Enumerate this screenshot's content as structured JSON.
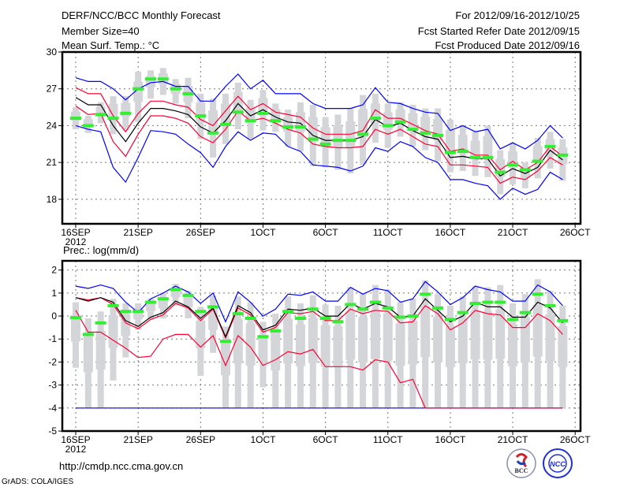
{
  "header": {
    "title": "DERF/NCC/BCC Monthly Forecast",
    "member_size": "Member Size=40",
    "variable_top": "Mean Surf. Temp.: °C",
    "period": "For 2012/09/16-2012/10/25",
    "start_date": "Fcst Started Refer Date 2012/09/15",
    "produced_date": "Fcst Produced Date 2012/09/16"
  },
  "footer": {
    "url": "http://cmdp.ncc.cma.gov.cn",
    "credit": "GrADS: COLA/IGES",
    "logo_bcc": "BCC",
    "logo_ncc": "NCC"
  },
  "colors": {
    "ensemble_bound": "#0000ff",
    "spread": "#ff0033",
    "mean": "#000000",
    "observed": "#33ee33",
    "box": "#d4d5d9",
    "grid": "#777777"
  },
  "chart_data": [
    {
      "type": "line",
      "title": "Mean Surf. Temp.: °C",
      "xlabel": "",
      "ylabel": "",
      "x_ticks": [
        "16SEP",
        "21SEP",
        "26SEP",
        "1OCT",
        "6OCT",
        "11OCT",
        "16OCT",
        "21OCT",
        "26OCT"
      ],
      "x_year": "2012",
      "y_ticks": [
        18,
        21,
        24,
        27,
        30
      ],
      "ylim": [
        16,
        30
      ],
      "xlim_days": [
        -1,
        40.5
      ],
      "grid": true,
      "series": [
        {
          "name": "box_max",
          "values": [
            25.5,
            24.8,
            25.9,
            26.4,
            26.4,
            28.4,
            28.5,
            28.7,
            27.8,
            27.9,
            26.6,
            26.2,
            26.6,
            27.5,
            26.1,
            26.9,
            25.8,
            25.3,
            25.9,
            25.7,
            24.7,
            24.9,
            25.4,
            26.5,
            26.6,
            25.8,
            25.9,
            25.7,
            25.4,
            25.4,
            24.5,
            24.0,
            23.5,
            24.0,
            22.0,
            22.6,
            21.0,
            23.0,
            23.5,
            22.9
          ]
        },
        {
          "name": "box_min",
          "values": [
            23.7,
            23.4,
            24.2,
            23.3,
            23.6,
            24.3,
            26.2,
            26.5,
            25.8,
            24.6,
            22.9,
            21.4,
            22.5,
            23.7,
            22.9,
            23.6,
            23.5,
            22.3,
            21.9,
            20.7,
            20.6,
            20.4,
            20.1,
            20.8,
            22.6,
            22.2,
            23.1,
            22.3,
            22.0,
            21.1,
            20.2,
            20.3,
            19.9,
            19.8,
            18.4,
            19.2,
            18.9,
            19.7,
            20.5,
            19.5
          ]
        },
        {
          "name": "upper_bound",
          "values": [
            27.9,
            27.6,
            27.6,
            27.0,
            26.1,
            27.0,
            27.5,
            27.6,
            27.2,
            27.2,
            26.0,
            26.0,
            27.2,
            28.2,
            27.0,
            27.7,
            26.6,
            26.6,
            26.6,
            25.8,
            25.4,
            25.4,
            25.4,
            25.7,
            27.1,
            25.9,
            25.8,
            25.4,
            25.1,
            25.0,
            23.6,
            24.0,
            23.5,
            23.7,
            22.1,
            22.6,
            22.1,
            22.8,
            24.0,
            23.0
          ]
        },
        {
          "name": "lower_bound",
          "values": [
            24.0,
            23.7,
            23.5,
            20.6,
            19.4,
            21.4,
            23.6,
            23.5,
            23.3,
            22.5,
            21.8,
            20.6,
            22.3,
            23.5,
            22.8,
            23.4,
            23.3,
            22.3,
            21.9,
            20.8,
            20.7,
            20.6,
            20.3,
            20.7,
            22.2,
            21.9,
            22.7,
            22.3,
            21.4,
            21.0,
            19.6,
            19.6,
            19.3,
            19.1,
            18.0,
            18.9,
            18.4,
            18.8,
            20.2,
            19.6
          ]
        },
        {
          "name": "upper_spread",
          "values": [
            27.1,
            26.6,
            26.6,
            24.8,
            23.5,
            25.0,
            26.0,
            26.0,
            25.7,
            25.5,
            24.5,
            24.0,
            25.2,
            26.4,
            25.3,
            25.8,
            25.1,
            24.9,
            24.7,
            23.8,
            23.3,
            23.3,
            23.3,
            23.6,
            25.3,
            24.6,
            24.6,
            24.1,
            23.6,
            23.3,
            21.9,
            22.1,
            21.6,
            21.6,
            20.4,
            21.1,
            20.4,
            21.0,
            22.3,
            21.5
          ]
        },
        {
          "name": "lower_spread",
          "values": [
            25.6,
            24.9,
            25.0,
            22.7,
            21.5,
            23.3,
            24.8,
            24.8,
            24.6,
            24.2,
            23.1,
            22.6,
            23.7,
            25.2,
            24.4,
            24.6,
            24.2,
            23.7,
            23.4,
            22.5,
            22.3,
            22.2,
            22.2,
            22.3,
            23.7,
            23.3,
            23.7,
            23.1,
            22.5,
            22.3,
            20.8,
            20.8,
            20.7,
            20.6,
            19.3,
            19.8,
            19.6,
            20.3,
            21.4,
            20.8
          ]
        },
        {
          "name": "ensemble_mean",
          "values": [
            26.3,
            25.7,
            25.7,
            24.0,
            22.7,
            24.2,
            25.4,
            25.4,
            25.2,
            24.9,
            23.9,
            23.4,
            24.4,
            25.8,
            24.8,
            25.3,
            24.7,
            24.3,
            24.2,
            23.2,
            22.8,
            22.8,
            22.8,
            23.1,
            24.5,
            23.9,
            24.2,
            23.6,
            23.1,
            22.9,
            21.4,
            21.5,
            21.3,
            21.3,
            19.9,
            20.5,
            20.1,
            20.6,
            22.0,
            21.2
          ]
        },
        {
          "name": "observed_marker",
          "values": [
            24.6,
            24.0,
            24.9,
            24.6,
            25.0,
            27.0,
            27.8,
            27.8,
            27.0,
            26.6,
            24.8,
            23.4,
            24.1,
            25.1,
            24.4,
            25.0,
            24.4,
            23.9,
            23.9,
            22.9,
            22.5,
            22.8,
            22.8,
            23.3,
            24.6,
            24.0,
            24.3,
            23.7,
            23.4,
            23.2,
            21.8,
            21.9,
            21.4,
            21.4,
            20.2,
            20.8,
            20.4,
            21.1,
            22.3,
            21.6
          ]
        }
      ]
    },
    {
      "type": "line",
      "title": "Prec.: log(mm/d)",
      "xlabel": "",
      "ylabel": "",
      "x_ticks": [
        "16SEP",
        "21SEP",
        "26SEP",
        "1OCT",
        "6OCT",
        "11OCT",
        "16OCT",
        "21OCT",
        "26OCT"
      ],
      "x_year": "2012",
      "y_ticks": [
        -5,
        -4,
        -3,
        -2,
        -1,
        0,
        1,
        2
      ],
      "ylim": [
        -5,
        2.4
      ],
      "xlim_days": [
        -1,
        40.5
      ],
      "grid": true,
      "series": [
        {
          "name": "box_max",
          "values": [
            0.6,
            -0.1,
            0.2,
            0.75,
            0.55,
            0.55,
            0.75,
            1.0,
            1.4,
            1.1,
            0.4,
            0.9,
            -0.45,
            0.85,
            0.6,
            -0.25,
            0.1,
            0.85,
            0.55,
            0.9,
            0.5,
            0.45,
            1.25,
            0.95,
            1.35,
            1.15,
            0.6,
            0.75,
            1.55,
            0.95,
            0.45,
            0.85,
            1.3,
            1.25,
            1.35,
            0.55,
            0.95,
            1.6,
            1.1,
            0.45
          ]
        },
        {
          "name": "box_min",
          "values": [
            -2.25,
            -4,
            -4,
            -2.8,
            -1.8,
            -0.6,
            -0.15,
            -0.1,
            0.45,
            -0.1,
            -2.6,
            -1.6,
            -4,
            -4,
            -4,
            -3.1,
            -4,
            -4,
            -4,
            -4,
            -4,
            -4,
            -4,
            -4,
            -4,
            -4,
            -4,
            -4,
            -4,
            -4,
            -4,
            -4,
            -4,
            -4,
            -4,
            -4,
            -4,
            -4,
            -4,
            -4
          ]
        },
        {
          "name": "upper_bound",
          "values": [
            1.3,
            1.2,
            1.35,
            1.2,
            0.6,
            0.15,
            0.75,
            1.0,
            1.3,
            1.05,
            0.55,
            1.0,
            -0.25,
            1.05,
            0.6,
            0.0,
            0.3,
            0.95,
            0.9,
            1.05,
            0.65,
            0.65,
            1.25,
            0.95,
            1.2,
            1.1,
            0.6,
            0.75,
            1.5,
            1.05,
            0.5,
            0.8,
            1.3,
            1.15,
            1.05,
            0.65,
            0.65,
            1.35,
            1.05,
            0.45
          ]
        },
        {
          "name": "lower_bound",
          "values": [
            -4,
            -4,
            -4,
            -4,
            -4,
            -4,
            -4,
            -4,
            -4,
            -4,
            -4,
            -4,
            -4,
            -4,
            -4,
            -4,
            -4,
            -4,
            -4,
            -4,
            -4,
            -4,
            -4,
            -4,
            -4,
            -4,
            -4,
            -4,
            -4,
            -4,
            -4,
            -4,
            -4,
            -4,
            -4,
            -4,
            -4,
            -4,
            -4,
            -4
          ]
        },
        {
          "name": "upper_spread",
          "values": [
            0.8,
            0.7,
            0.8,
            0.5,
            -0.3,
            -0.55,
            -0.15,
            0.05,
            0.55,
            0.35,
            -0.2,
            0.3,
            -0.95,
            0.35,
            0.05,
            -0.7,
            -0.5,
            0.15,
            0.1,
            0.2,
            -0.2,
            -0.2,
            0.3,
            0.1,
            0.25,
            0.2,
            -0.3,
            -0.25,
            0.45,
            0.1,
            -0.6,
            -0.3,
            0.25,
            0.1,
            0.05,
            -0.5,
            -0.5,
            0.1,
            -0.2,
            -0.8
          ]
        },
        {
          "name": "lower_spread",
          "values": [
            0.25,
            -0.7,
            -0.7,
            -1.05,
            -1.4,
            -1.8,
            -1.75,
            -1.0,
            -0.8,
            -0.8,
            -1.35,
            -0.85,
            -2.15,
            -0.85,
            -1.35,
            -2.15,
            -1.9,
            -1.55,
            -1.65,
            -1.45,
            -2.2,
            -2.2,
            -2.2,
            -2.35,
            -1.9,
            -2.0,
            -2.9,
            -2.75,
            -4,
            -4,
            -4,
            -4,
            -4,
            -4,
            -4,
            -4,
            -4,
            -4,
            -4,
            -4
          ]
        },
        {
          "name": "ensemble_mean",
          "values": [
            0.8,
            0.65,
            0.8,
            0.6,
            -0.2,
            -0.45,
            -0.05,
            0.15,
            0.65,
            0.4,
            -0.1,
            0.35,
            -0.9,
            0.45,
            0.15,
            -0.6,
            -0.4,
            0.3,
            0.25,
            0.35,
            0.0,
            0.0,
            0.55,
            0.3,
            0.55,
            0.4,
            -0.05,
            0.0,
            0.75,
            0.25,
            -0.25,
            0.0,
            0.6,
            0.4,
            0.4,
            -0.05,
            -0.05,
            0.6,
            0.35,
            -0.3
          ]
        },
        {
          "name": "observed_marker",
          "values": [
            -0.07,
            -0.8,
            -0.3,
            0.45,
            0.2,
            0.2,
            0.6,
            0.75,
            1.15,
            0.9,
            0.2,
            0.4,
            -1.1,
            0.1,
            -0.1,
            -0.9,
            -0.65,
            0.2,
            -0.1,
            0.3,
            -0.1,
            -0.25,
            0.5,
            0.3,
            0.6,
            0.35,
            -0.05,
            0.0,
            0.95,
            0.35,
            -0.15,
            0.15,
            0.55,
            0.6,
            0.6,
            -0.15,
            0.15,
            0.95,
            0.45,
            -0.2
          ]
        }
      ]
    }
  ]
}
